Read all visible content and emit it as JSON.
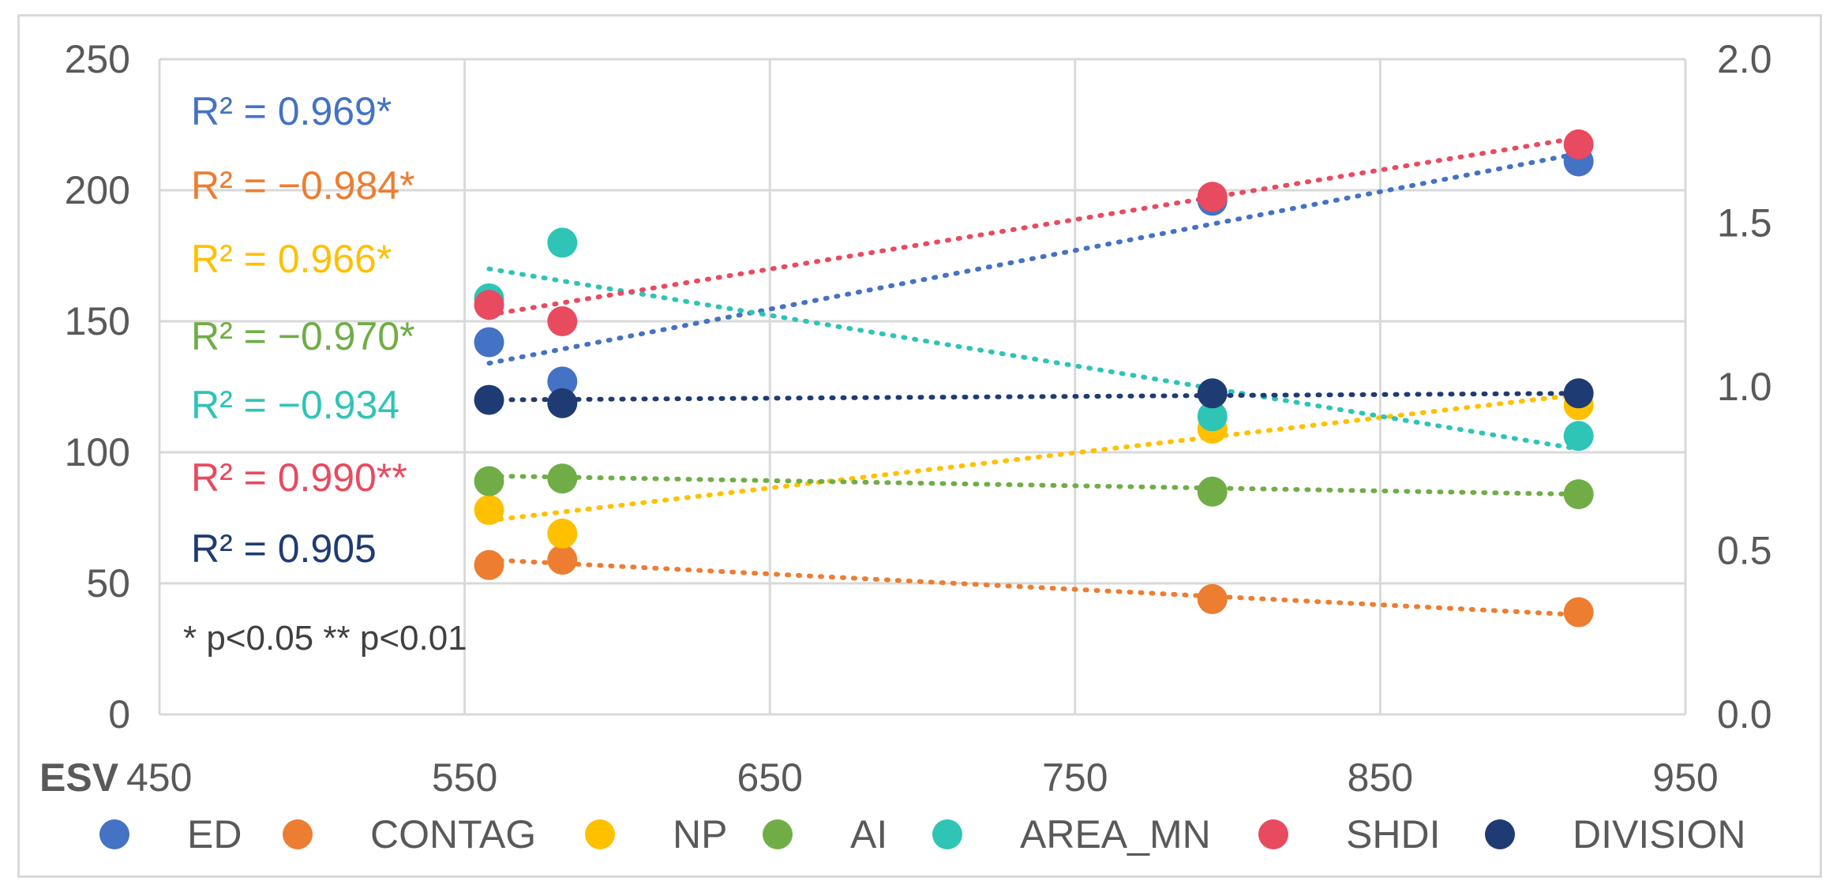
{
  "chart_data": {
    "type": "scatter",
    "title": "",
    "xlabel": "ESV",
    "x_ticks": [
      "450",
      "550",
      "650",
      "750",
      "850",
      "950"
    ],
    "xlim": [
      450,
      950
    ],
    "left_axis": {
      "ylim": [
        0,
        250
      ],
      "ticks": [
        "0",
        "50",
        "100",
        "150",
        "200",
        "250"
      ]
    },
    "right_axis": {
      "ylim": [
        0,
        2.0
      ],
      "ticks": [
        "0.0",
        "0.5",
        "1.0",
        "1.5",
        "2.0"
      ]
    },
    "grid": true,
    "legend_position": "bottom",
    "series": [
      {
        "name": "ED",
        "color": "#4472C4",
        "axis": "left",
        "x": [
          558,
          582,
          795,
          915
        ],
        "y": [
          142,
          127,
          196,
          211
        ],
        "trend": [
          [
            558,
            134
          ],
          [
            915,
            214
          ]
        ],
        "r2_label": "R² =  0.969*"
      },
      {
        "name": "CONTAG",
        "color": "#ED7D31",
        "axis": "left",
        "x": [
          558,
          582,
          795,
          915
        ],
        "y": [
          57,
          59,
          44,
          39
        ],
        "trend": [
          [
            558,
            59
          ],
          [
            915,
            38
          ]
        ],
        "r2_label": "R² = −0.984*"
      },
      {
        "name": "NP",
        "color": "#FFC000",
        "axis": "left",
        "x": [
          558,
          582,
          795,
          915
        ],
        "y": [
          78,
          69,
          109,
          118
        ],
        "trend": [
          [
            558,
            74
          ],
          [
            915,
            122
          ]
        ],
        "r2_label": "R² =  0.966*"
      },
      {
        "name": "AI",
        "color": "#70AD47",
        "axis": "left",
        "x": [
          558,
          582,
          795,
          915
        ],
        "y": [
          89,
          90,
          85,
          84
        ],
        "trend": [
          [
            558,
            91
          ],
          [
            915,
            84
          ]
        ],
        "r2_label": "R² = −0.970*"
      },
      {
        "name": "AREA_MN",
        "color": "#2EC4B6",
        "axis": "right",
        "x": [
          558,
          582,
          795,
          915
        ],
        "y": [
          1.27,
          1.44,
          0.91,
          0.85
        ],
        "trend": [
          [
            558,
            1.36
          ],
          [
            915,
            0.81
          ]
        ],
        "r2_label": "R² = −0.934"
      },
      {
        "name": "SHDI",
        "color": "#E84A5F",
        "axis": "right",
        "x": [
          558,
          582,
          795,
          915
        ],
        "y": [
          1.25,
          1.2,
          1.58,
          1.74
        ],
        "trend": [
          [
            558,
            1.22
          ],
          [
            915,
            1.76
          ]
        ],
        "r2_label": "R² =  0.990**"
      },
      {
        "name": "DIVISION",
        "color": "#1F3B73",
        "axis": "right",
        "x": [
          558,
          582,
          795,
          915
        ],
        "y": [
          0.96,
          0.95,
          0.98,
          0.98
        ],
        "trend": [
          [
            558,
            0.96
          ],
          [
            915,
            0.98
          ]
        ],
        "r2_label": "R² =  0.905"
      }
    ],
    "annotations": [
      "* p<0.05 ** p<0.01"
    ]
  }
}
